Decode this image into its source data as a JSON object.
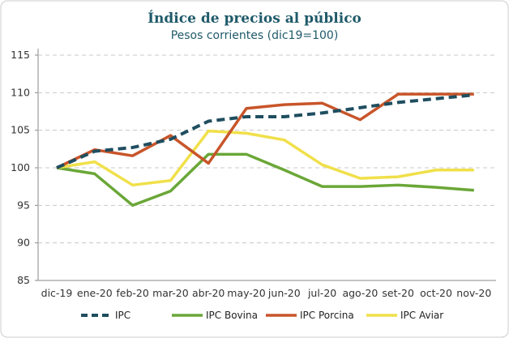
{
  "chart_data": {
    "type": "line",
    "title": "Índice de precios al público",
    "subtitle": "Pesos corrientes (dic19=100)",
    "xlabel": "",
    "ylabel": "",
    "ylim": [
      85,
      115
    ],
    "yticks": [
      85,
      90,
      95,
      100,
      105,
      110,
      115
    ],
    "grid": true,
    "legend_position": "bottom",
    "categories": [
      "dic-19",
      "ene-20",
      "feb-20",
      "mar-20",
      "abr-20",
      "may-20",
      "jun-20",
      "jul-20",
      "ago-20",
      "set-20",
      "oct-20",
      "nov-20"
    ],
    "series": [
      {
        "name": "IPC",
        "color": "#1f4e5f",
        "dashed": true,
        "values": [
          100,
          102.2,
          102.7,
          103.8,
          106.2,
          106.8,
          106.8,
          107.3,
          108.0,
          108.7,
          109.2,
          109.7
        ]
      },
      {
        "name": "IPC Bovina",
        "color": "#6aa737",
        "dashed": false,
        "values": [
          100,
          99.2,
          95.0,
          96.9,
          101.8,
          101.8,
          99.7,
          97.5,
          97.5,
          97.7,
          97.4,
          97.0
        ]
      },
      {
        "name": "IPC Porcina",
        "color": "#c8552a",
        "dashed": false,
        "values": [
          100,
          102.4,
          101.6,
          104.3,
          100.6,
          107.9,
          108.4,
          108.6,
          106.4,
          109.8,
          109.8,
          109.8
        ]
      },
      {
        "name": "IPC Aviar",
        "color": "#f0e04a",
        "dashed": false,
        "values": [
          100,
          100.8,
          97.7,
          98.3,
          104.9,
          104.6,
          103.7,
          100.4,
          98.6,
          98.8,
          99.7,
          99.7
        ]
      }
    ]
  }
}
